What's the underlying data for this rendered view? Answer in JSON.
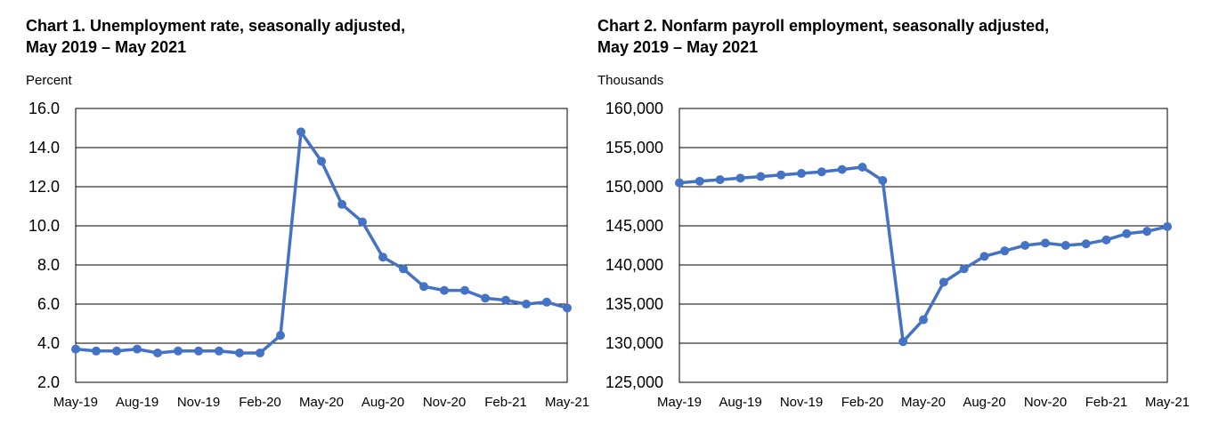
{
  "chart_data": [
    {
      "type": "line",
      "title_line1": "Chart 1. Unemployment rate, seasonally adjusted,",
      "title_line2": "May 2019 – May 2021",
      "ylabel": "Percent",
      "xlabel": "",
      "ylim": [
        2.0,
        16.0
      ],
      "yticks": [
        2.0,
        4.0,
        6.0,
        8.0,
        10.0,
        12.0,
        14.0,
        16.0
      ],
      "ytick_labels": [
        "2.0",
        "4.0",
        "6.0",
        "8.0",
        "10.0",
        "12.0",
        "14.0",
        "16.0"
      ],
      "xtick_labels": [
        "May-19",
        "Aug-19",
        "Nov-19",
        "Feb-20",
        "May-20",
        "Aug-20",
        "Nov-20",
        "Feb-21",
        "May-21"
      ],
      "xtick_indices": [
        0,
        3,
        6,
        9,
        12,
        15,
        18,
        21,
        24
      ],
      "grid": true,
      "color": "#4472C4",
      "series": [
        {
          "name": "Unemployment rate",
          "values": [
            3.7,
            3.6,
            3.6,
            3.7,
            3.5,
            3.6,
            3.6,
            3.6,
            3.5,
            3.5,
            4.4,
            14.8,
            13.3,
            11.1,
            10.2,
            8.4,
            7.8,
            6.9,
            6.7,
            6.7,
            6.3,
            6.2,
            6.0,
            6.1,
            5.8
          ]
        }
      ]
    },
    {
      "type": "line",
      "title_line1": "Chart 2. Nonfarm payroll employment, seasonally adjusted,",
      "title_line2": "May 2019 – May 2021",
      "ylabel": "Thousands",
      "xlabel": "",
      "ylim": [
        125000,
        160000
      ],
      "yticks": [
        125000,
        130000,
        135000,
        140000,
        145000,
        150000,
        155000,
        160000
      ],
      "ytick_labels": [
        "125,000",
        "130,000",
        "135,000",
        "140,000",
        "145,000",
        "150,000",
        "155,000",
        "160,000"
      ],
      "xtick_labels": [
        "May-19",
        "Aug-19",
        "Nov-19",
        "Feb-20",
        "May-20",
        "Aug-20",
        "Nov-20",
        "Feb-21",
        "May-21"
      ],
      "xtick_indices": [
        0,
        3,
        6,
        9,
        12,
        15,
        18,
        21,
        24
      ],
      "grid": true,
      "color": "#4472C4",
      "series": [
        {
          "name": "Nonfarm payroll employment",
          "values": [
            150500,
            150700,
            150900,
            151100,
            151300,
            151500,
            151700,
            151900,
            152200,
            152500,
            150800,
            130200,
            133000,
            137800,
            139500,
            141100,
            141800,
            142500,
            142800,
            142500,
            142700,
            143200,
            144000,
            144300,
            144900
          ]
        }
      ]
    }
  ]
}
